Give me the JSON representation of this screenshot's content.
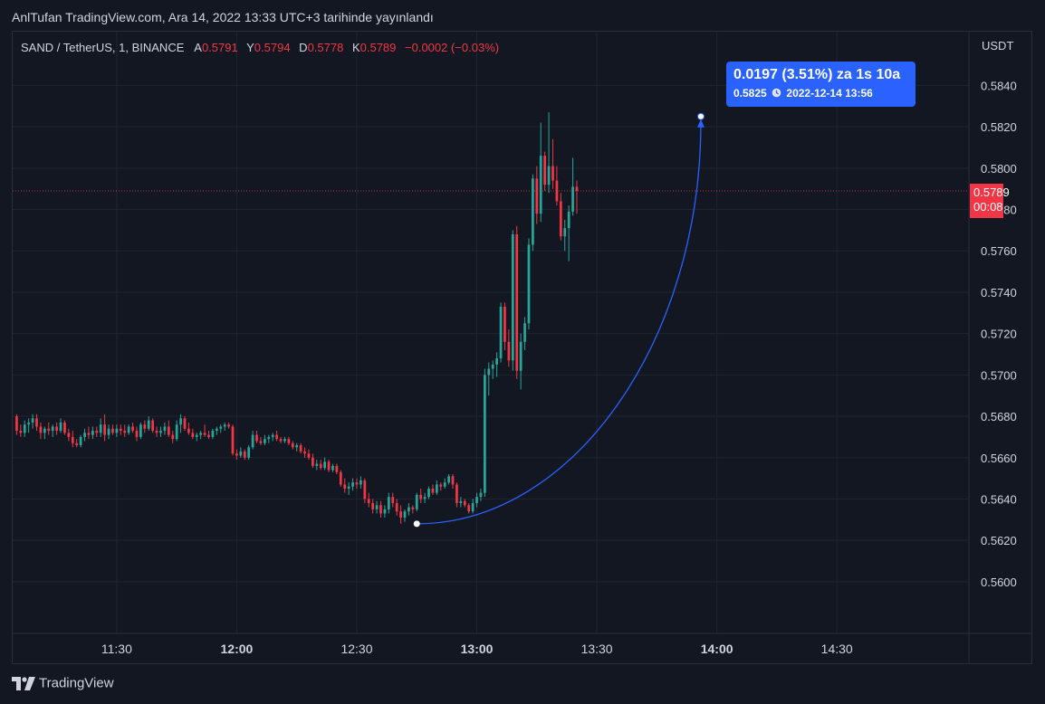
{
  "header": {
    "published_text": "AnlTufan TradingView.com, Ara 14, 2022 13:33 UTC+3 tarihinde yayınlandı"
  },
  "legend": {
    "symbol": "SAND / TetherUS, 1, BINANCE",
    "open_label": "A",
    "open_value": "0.5791",
    "high_label": "Y",
    "high_value": "0.5794",
    "low_label": "D",
    "low_value": "0.5778",
    "close_label": "K",
    "close_value": "0.5789",
    "change": "−0.0002 (−0.03%)"
  },
  "axis": {
    "currency": "USDT"
  },
  "last_price": {
    "value": "0.5789",
    "countdown": "00:08"
  },
  "projection": {
    "line1": "0.0197 (3.51%) za 1s 10a",
    "price": "0.5825",
    "datetime": "2022-12-14  13:56",
    "start": {
      "time": "12:45",
      "price": 0.5628
    },
    "end": {
      "time": "13:56",
      "price": 0.5825
    }
  },
  "footer": {
    "brand": "TradingView"
  },
  "colors": {
    "up": "#26a69a",
    "down": "#f23645",
    "grid": "#1f2430",
    "projection": "#2962ff",
    "background": "#131722"
  },
  "chart_data": {
    "type": "candlestick",
    "title": "SAND / TetherUS, 1, BINANCE",
    "x_ticks": [
      "11:30",
      "12:00",
      "12:30",
      "13:00",
      "13:30",
      "14:00",
      "14:30"
    ],
    "x_ticks_bold": [
      "12:00",
      "13:00",
      "14:00"
    ],
    "y_ticks": [
      "0.5600",
      "0.5620",
      "0.5640",
      "0.5660",
      "0.5680",
      "0.5700",
      "0.5720",
      "0.5740",
      "0.5760",
      "0.5780",
      "0.5800",
      "0.5820",
      "0.5840"
    ],
    "ylim": [
      0.5575,
      0.5866
    ],
    "xlim": [
      "11:04",
      "15:03"
    ],
    "current_price": 0.5789,
    "grid": true,
    "candles": [
      {
        "t": "11:05",
        "o": 0.568,
        "h": 0.5681,
        "l": 0.5671,
        "c": 0.5673
      },
      {
        "t": "11:06",
        "o": 0.5673,
        "h": 0.5676,
        "l": 0.567,
        "c": 0.5672
      },
      {
        "t": "11:07",
        "o": 0.5672,
        "h": 0.5678,
        "l": 0.567,
        "c": 0.5676
      },
      {
        "t": "11:08",
        "o": 0.5676,
        "h": 0.5679,
        "l": 0.5672,
        "c": 0.5677
      },
      {
        "t": "11:09",
        "o": 0.5677,
        "h": 0.5681,
        "l": 0.5674,
        "c": 0.5679
      },
      {
        "t": "11:10",
        "o": 0.5679,
        "h": 0.5681,
        "l": 0.5673,
        "c": 0.5675
      },
      {
        "t": "11:11",
        "o": 0.5675,
        "h": 0.5677,
        "l": 0.5669,
        "c": 0.5672
      },
      {
        "t": "11:12",
        "o": 0.5672,
        "h": 0.5675,
        "l": 0.5669,
        "c": 0.5674
      },
      {
        "t": "11:13",
        "o": 0.5674,
        "h": 0.5677,
        "l": 0.5671,
        "c": 0.5673
      },
      {
        "t": "11:14",
        "o": 0.5673,
        "h": 0.5676,
        "l": 0.567,
        "c": 0.5675
      },
      {
        "t": "11:15",
        "o": 0.5675,
        "h": 0.5677,
        "l": 0.5671,
        "c": 0.5673
      },
      {
        "t": "11:16",
        "o": 0.5673,
        "h": 0.5679,
        "l": 0.5672,
        "c": 0.5677
      },
      {
        "t": "11:17",
        "o": 0.5677,
        "h": 0.5678,
        "l": 0.5671,
        "c": 0.5672
      },
      {
        "t": "11:18",
        "o": 0.5672,
        "h": 0.5674,
        "l": 0.5668,
        "c": 0.567
      },
      {
        "t": "11:19",
        "o": 0.567,
        "h": 0.5673,
        "l": 0.5665,
        "c": 0.5667
      },
      {
        "t": "11:20",
        "o": 0.5667,
        "h": 0.5669,
        "l": 0.5665,
        "c": 0.5666
      },
      {
        "t": "11:21",
        "o": 0.5666,
        "h": 0.5671,
        "l": 0.5665,
        "c": 0.567
      },
      {
        "t": "11:22",
        "o": 0.567,
        "h": 0.5674,
        "l": 0.5668,
        "c": 0.5672
      },
      {
        "t": "11:23",
        "o": 0.5672,
        "h": 0.5675,
        "l": 0.5669,
        "c": 0.5671
      },
      {
        "t": "11:24",
        "o": 0.5671,
        "h": 0.5675,
        "l": 0.5669,
        "c": 0.5673
      },
      {
        "t": "11:25",
        "o": 0.5673,
        "h": 0.5675,
        "l": 0.567,
        "c": 0.5672
      },
      {
        "t": "11:26",
        "o": 0.5672,
        "h": 0.5679,
        "l": 0.567,
        "c": 0.5676
      },
      {
        "t": "11:27",
        "o": 0.5676,
        "h": 0.5681,
        "l": 0.5668,
        "c": 0.5671
      },
      {
        "t": "11:28",
        "o": 0.5671,
        "h": 0.5676,
        "l": 0.5669,
        "c": 0.5674
      },
      {
        "t": "11:29",
        "o": 0.5674,
        "h": 0.5676,
        "l": 0.5671,
        "c": 0.5672
      },
      {
        "t": "11:30",
        "o": 0.5672,
        "h": 0.5676,
        "l": 0.567,
        "c": 0.5674
      },
      {
        "t": "11:31",
        "o": 0.5674,
        "h": 0.5676,
        "l": 0.5671,
        "c": 0.5673
      },
      {
        "t": "11:32",
        "o": 0.5673,
        "h": 0.5676,
        "l": 0.567,
        "c": 0.5672
      },
      {
        "t": "11:33",
        "o": 0.5672,
        "h": 0.5676,
        "l": 0.5671,
        "c": 0.5675
      },
      {
        "t": "11:34",
        "o": 0.5675,
        "h": 0.5677,
        "l": 0.5672,
        "c": 0.5673
      },
      {
        "t": "11:35",
        "o": 0.5673,
        "h": 0.5675,
        "l": 0.5668,
        "c": 0.567
      },
      {
        "t": "11:36",
        "o": 0.567,
        "h": 0.5677,
        "l": 0.5669,
        "c": 0.5676
      },
      {
        "t": "11:37",
        "o": 0.5676,
        "h": 0.5678,
        "l": 0.5672,
        "c": 0.5674
      },
      {
        "t": "11:38",
        "o": 0.5674,
        "h": 0.568,
        "l": 0.5673,
        "c": 0.5678
      },
      {
        "t": "11:39",
        "o": 0.5678,
        "h": 0.5679,
        "l": 0.5672,
        "c": 0.5673
      },
      {
        "t": "11:40",
        "o": 0.5673,
        "h": 0.5675,
        "l": 0.567,
        "c": 0.5672
      },
      {
        "t": "11:41",
        "o": 0.5672,
        "h": 0.5675,
        "l": 0.567,
        "c": 0.5673
      },
      {
        "t": "11:42",
        "o": 0.5673,
        "h": 0.5677,
        "l": 0.5671,
        "c": 0.5675
      },
      {
        "t": "11:43",
        "o": 0.5675,
        "h": 0.5678,
        "l": 0.567,
        "c": 0.5671
      },
      {
        "t": "11:44",
        "o": 0.5671,
        "h": 0.5673,
        "l": 0.5667,
        "c": 0.5669
      },
      {
        "t": "11:45",
        "o": 0.5669,
        "h": 0.5678,
        "l": 0.5668,
        "c": 0.5676
      },
      {
        "t": "11:46",
        "o": 0.5676,
        "h": 0.5681,
        "l": 0.5672,
        "c": 0.5679
      },
      {
        "t": "11:47",
        "o": 0.5679,
        "h": 0.568,
        "l": 0.5673,
        "c": 0.5674
      },
      {
        "t": "11:48",
        "o": 0.5674,
        "h": 0.5677,
        "l": 0.5671,
        "c": 0.5672
      },
      {
        "t": "11:49",
        "o": 0.5672,
        "h": 0.5674,
        "l": 0.5669,
        "c": 0.567
      },
      {
        "t": "11:50",
        "o": 0.567,
        "h": 0.5672,
        "l": 0.5668,
        "c": 0.5671
      },
      {
        "t": "11:51",
        "o": 0.5671,
        "h": 0.5673,
        "l": 0.5669,
        "c": 0.5672
      },
      {
        "t": "11:52",
        "o": 0.5672,
        "h": 0.5676,
        "l": 0.567,
        "c": 0.5671
      },
      {
        "t": "11:53",
        "o": 0.5671,
        "h": 0.5673,
        "l": 0.5669,
        "c": 0.567
      },
      {
        "t": "11:54",
        "o": 0.567,
        "h": 0.5674,
        "l": 0.5669,
        "c": 0.5673
      },
      {
        "t": "11:55",
        "o": 0.5673,
        "h": 0.5675,
        "l": 0.5671,
        "c": 0.5674
      },
      {
        "t": "11:56",
        "o": 0.5674,
        "h": 0.5676,
        "l": 0.5672,
        "c": 0.5675
      },
      {
        "t": "11:57",
        "o": 0.5675,
        "h": 0.5677,
        "l": 0.5673,
        "c": 0.5676
      },
      {
        "t": "11:58",
        "o": 0.5676,
        "h": 0.5677,
        "l": 0.5674,
        "c": 0.5675
      },
      {
        "t": "11:59",
        "o": 0.5675,
        "h": 0.5676,
        "l": 0.5661,
        "c": 0.5662
      },
      {
        "t": "12:00",
        "o": 0.5662,
        "h": 0.5664,
        "l": 0.5659,
        "c": 0.5661
      },
      {
        "t": "12:01",
        "o": 0.5661,
        "h": 0.5665,
        "l": 0.566,
        "c": 0.5663
      },
      {
        "t": "12:02",
        "o": 0.5663,
        "h": 0.5664,
        "l": 0.5659,
        "c": 0.566
      },
      {
        "t": "12:03",
        "o": 0.566,
        "h": 0.5666,
        "l": 0.5659,
        "c": 0.5665
      },
      {
        "t": "12:04",
        "o": 0.5665,
        "h": 0.5673,
        "l": 0.5664,
        "c": 0.5671
      },
      {
        "t": "12:05",
        "o": 0.5671,
        "h": 0.5673,
        "l": 0.5667,
        "c": 0.5668
      },
      {
        "t": "12:06",
        "o": 0.5668,
        "h": 0.567,
        "l": 0.5666,
        "c": 0.5667
      },
      {
        "t": "12:07",
        "o": 0.5667,
        "h": 0.5671,
        "l": 0.5666,
        "c": 0.5669
      },
      {
        "t": "12:08",
        "o": 0.5669,
        "h": 0.5671,
        "l": 0.5667,
        "c": 0.567
      },
      {
        "t": "12:09",
        "o": 0.567,
        "h": 0.5672,
        "l": 0.5668,
        "c": 0.5671
      },
      {
        "t": "12:10",
        "o": 0.5671,
        "h": 0.5673,
        "l": 0.5668,
        "c": 0.5669
      },
      {
        "t": "12:11",
        "o": 0.5669,
        "h": 0.567,
        "l": 0.5667,
        "c": 0.5668
      },
      {
        "t": "12:12",
        "o": 0.5668,
        "h": 0.567,
        "l": 0.5667,
        "c": 0.5669
      },
      {
        "t": "12:13",
        "o": 0.5669,
        "h": 0.567,
        "l": 0.5666,
        "c": 0.5667
      },
      {
        "t": "12:14",
        "o": 0.5667,
        "h": 0.5668,
        "l": 0.5664,
        "c": 0.5665
      },
      {
        "t": "12:15",
        "o": 0.5665,
        "h": 0.5667,
        "l": 0.5663,
        "c": 0.5666
      },
      {
        "t": "12:16",
        "o": 0.5666,
        "h": 0.5667,
        "l": 0.5662,
        "c": 0.5663
      },
      {
        "t": "12:17",
        "o": 0.5663,
        "h": 0.5665,
        "l": 0.566,
        "c": 0.5662
      },
      {
        "t": "12:18",
        "o": 0.5662,
        "h": 0.5664,
        "l": 0.5659,
        "c": 0.566
      },
      {
        "t": "12:19",
        "o": 0.566,
        "h": 0.5662,
        "l": 0.5655,
        "c": 0.5656
      },
      {
        "t": "12:20",
        "o": 0.5656,
        "h": 0.5659,
        "l": 0.5654,
        "c": 0.5657
      },
      {
        "t": "12:21",
        "o": 0.5657,
        "h": 0.5659,
        "l": 0.5654,
        "c": 0.5655
      },
      {
        "t": "12:22",
        "o": 0.5655,
        "h": 0.566,
        "l": 0.5654,
        "c": 0.5658
      },
      {
        "t": "12:23",
        "o": 0.5658,
        "h": 0.5659,
        "l": 0.5653,
        "c": 0.5654
      },
      {
        "t": "12:24",
        "o": 0.5654,
        "h": 0.5657,
        "l": 0.5653,
        "c": 0.5656
      },
      {
        "t": "12:25",
        "o": 0.5656,
        "h": 0.5657,
        "l": 0.5652,
        "c": 0.5653
      },
      {
        "t": "12:26",
        "o": 0.5653,
        "h": 0.5654,
        "l": 0.5646,
        "c": 0.5647
      },
      {
        "t": "12:27",
        "o": 0.5647,
        "h": 0.565,
        "l": 0.5643,
        "c": 0.5645
      },
      {
        "t": "12:28",
        "o": 0.5645,
        "h": 0.5648,
        "l": 0.5642,
        "c": 0.5646
      },
      {
        "t": "12:29",
        "o": 0.5646,
        "h": 0.565,
        "l": 0.5644,
        "c": 0.5648
      },
      {
        "t": "12:30",
        "o": 0.5648,
        "h": 0.565,
        "l": 0.5645,
        "c": 0.5647
      },
      {
        "t": "12:31",
        "o": 0.5647,
        "h": 0.5651,
        "l": 0.5645,
        "c": 0.5649
      },
      {
        "t": "12:32",
        "o": 0.5649,
        "h": 0.565,
        "l": 0.5638,
        "c": 0.564
      },
      {
        "t": "12:33",
        "o": 0.564,
        "h": 0.5643,
        "l": 0.5636,
        "c": 0.5638
      },
      {
        "t": "12:34",
        "o": 0.5638,
        "h": 0.564,
        "l": 0.5633,
        "c": 0.5635
      },
      {
        "t": "12:35",
        "o": 0.5635,
        "h": 0.5639,
        "l": 0.5633,
        "c": 0.5637
      },
      {
        "t": "12:36",
        "o": 0.5637,
        "h": 0.5639,
        "l": 0.5631,
        "c": 0.5633
      },
      {
        "t": "12:37",
        "o": 0.5633,
        "h": 0.5637,
        "l": 0.5631,
        "c": 0.5635
      },
      {
        "t": "12:38",
        "o": 0.5635,
        "h": 0.5643,
        "l": 0.5633,
        "c": 0.5641
      },
      {
        "t": "12:39",
        "o": 0.5641,
        "h": 0.5643,
        "l": 0.5636,
        "c": 0.5638
      },
      {
        "t": "12:40",
        "o": 0.5638,
        "h": 0.564,
        "l": 0.5632,
        "c": 0.5634
      },
      {
        "t": "12:41",
        "o": 0.5634,
        "h": 0.5637,
        "l": 0.5628,
        "c": 0.5631
      },
      {
        "t": "12:42",
        "o": 0.5631,
        "h": 0.5635,
        "l": 0.5629,
        "c": 0.5634
      },
      {
        "t": "12:43",
        "o": 0.5634,
        "h": 0.5638,
        "l": 0.5632,
        "c": 0.5636
      },
      {
        "t": "12:44",
        "o": 0.5636,
        "h": 0.5637,
        "l": 0.5633,
        "c": 0.5635
      },
      {
        "t": "12:45",
        "o": 0.5635,
        "h": 0.5643,
        "l": 0.5634,
        "c": 0.5642
      },
      {
        "t": "12:46",
        "o": 0.5642,
        "h": 0.5645,
        "l": 0.5638,
        "c": 0.564
      },
      {
        "t": "12:47",
        "o": 0.564,
        "h": 0.5643,
        "l": 0.5638,
        "c": 0.5641
      },
      {
        "t": "12:48",
        "o": 0.5641,
        "h": 0.5646,
        "l": 0.564,
        "c": 0.5645
      },
      {
        "t": "12:49",
        "o": 0.5645,
        "h": 0.5647,
        "l": 0.5642,
        "c": 0.5643
      },
      {
        "t": "12:50",
        "o": 0.5643,
        "h": 0.5649,
        "l": 0.5642,
        "c": 0.5647
      },
      {
        "t": "12:51",
        "o": 0.5647,
        "h": 0.5648,
        "l": 0.5644,
        "c": 0.5646
      },
      {
        "t": "12:52",
        "o": 0.5646,
        "h": 0.565,
        "l": 0.5645,
        "c": 0.5648
      },
      {
        "t": "12:53",
        "o": 0.5648,
        "h": 0.5652,
        "l": 0.5647,
        "c": 0.5651
      },
      {
        "t": "12:54",
        "o": 0.5651,
        "h": 0.5652,
        "l": 0.5645,
        "c": 0.5647
      },
      {
        "t": "12:55",
        "o": 0.5647,
        "h": 0.5648,
        "l": 0.5636,
        "c": 0.5638
      },
      {
        "t": "12:56",
        "o": 0.5638,
        "h": 0.5641,
        "l": 0.5636,
        "c": 0.5639
      },
      {
        "t": "12:57",
        "o": 0.5639,
        "h": 0.564,
        "l": 0.5636,
        "c": 0.5637
      },
      {
        "t": "12:58",
        "o": 0.5637,
        "h": 0.5638,
        "l": 0.5633,
        "c": 0.5634
      },
      {
        "t": "12:59",
        "o": 0.5634,
        "h": 0.564,
        "l": 0.5633,
        "c": 0.5638
      },
      {
        "t": "13:00",
        "o": 0.5638,
        "h": 0.5643,
        "l": 0.5636,
        "c": 0.5641
      },
      {
        "t": "13:01",
        "o": 0.5641,
        "h": 0.5645,
        "l": 0.5639,
        "c": 0.5643
      },
      {
        "t": "13:02",
        "o": 0.5643,
        "h": 0.5703,
        "l": 0.5641,
        "c": 0.57
      },
      {
        "t": "13:03",
        "o": 0.57,
        "h": 0.5706,
        "l": 0.569,
        "c": 0.5703
      },
      {
        "t": "13:04",
        "o": 0.5703,
        "h": 0.5707,
        "l": 0.5698,
        "c": 0.5705
      },
      {
        "t": "13:05",
        "o": 0.5705,
        "h": 0.5711,
        "l": 0.5699,
        "c": 0.5708
      },
      {
        "t": "13:06",
        "o": 0.5708,
        "h": 0.5735,
        "l": 0.5706,
        "c": 0.5733
      },
      {
        "t": "13:07",
        "o": 0.5733,
        "h": 0.5735,
        "l": 0.5712,
        "c": 0.5716
      },
      {
        "t": "13:08",
        "o": 0.5716,
        "h": 0.5722,
        "l": 0.5704,
        "c": 0.5707
      },
      {
        "t": "13:09",
        "o": 0.5707,
        "h": 0.577,
        "l": 0.5702,
        "c": 0.5768
      },
      {
        "t": "13:10",
        "o": 0.5768,
        "h": 0.5772,
        "l": 0.5698,
        "c": 0.5702
      },
      {
        "t": "13:11",
        "o": 0.5702,
        "h": 0.572,
        "l": 0.5693,
        "c": 0.5716
      },
      {
        "t": "13:12",
        "o": 0.5716,
        "h": 0.5728,
        "l": 0.5712,
        "c": 0.5725
      },
      {
        "t": "13:13",
        "o": 0.5725,
        "h": 0.5766,
        "l": 0.5722,
        "c": 0.5763
      },
      {
        "t": "13:14",
        "o": 0.5763,
        "h": 0.5797,
        "l": 0.576,
        "c": 0.5795
      },
      {
        "t": "13:15",
        "o": 0.5795,
        "h": 0.5801,
        "l": 0.5773,
        "c": 0.5778
      },
      {
        "t": "13:16",
        "o": 0.5778,
        "h": 0.5822,
        "l": 0.5774,
        "c": 0.5806
      },
      {
        "t": "13:17",
        "o": 0.5806,
        "h": 0.5808,
        "l": 0.5789,
        "c": 0.5792
      },
      {
        "t": "13:18",
        "o": 0.5792,
        "h": 0.5827,
        "l": 0.5788,
        "c": 0.5801
      },
      {
        "t": "13:19",
        "o": 0.5801,
        "h": 0.5814,
        "l": 0.579,
        "c": 0.5794
      },
      {
        "t": "13:20",
        "o": 0.5794,
        "h": 0.5801,
        "l": 0.5782,
        "c": 0.5784
      },
      {
        "t": "13:21",
        "o": 0.5784,
        "h": 0.5788,
        "l": 0.5765,
        "c": 0.5767
      },
      {
        "t": "13:22",
        "o": 0.5767,
        "h": 0.5775,
        "l": 0.576,
        "c": 0.5771
      },
      {
        "t": "13:23",
        "o": 0.5771,
        "h": 0.5782,
        "l": 0.5755,
        "c": 0.5779
      },
      {
        "t": "13:24",
        "o": 0.5779,
        "h": 0.5805,
        "l": 0.5777,
        "c": 0.5791
      },
      {
        "t": "13:25",
        "o": 0.5791,
        "h": 0.5794,
        "l": 0.5778,
        "c": 0.5789
      }
    ]
  }
}
